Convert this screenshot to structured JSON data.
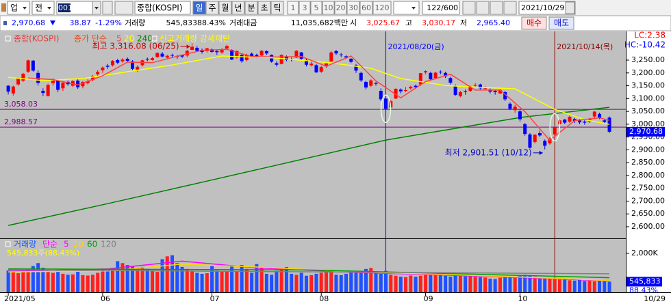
{
  "toolbar": {
    "market": "업",
    "scope": "전",
    "code": "001",
    "name": "종합(KOSPI)",
    "periods": [
      "일",
      "주",
      "월",
      "년",
      "분",
      "초",
      "틱"
    ],
    "intervals": [
      "1",
      "3",
      "5",
      "10",
      "20",
      "30",
      "60",
      "120"
    ],
    "count": "122/600",
    "date": "2021/10/29"
  },
  "quote": {
    "price": "2,970.68",
    "change": "38.87",
    "change_rate": "-1.29%",
    "volume_label": "거래량",
    "volume": "545,833",
    "volume_ratio": "88.43%",
    "amount_label": "거래대금",
    "amount": "11,035,682백만",
    "open_label": "시",
    "open": "3,025.67",
    "high_label": "고",
    "high": "3,030.17",
    "low_label": "저",
    "low": "2,965.40",
    "buy": "매수",
    "sell": "매도"
  },
  "chart_data": {
    "type": "candlestick",
    "legend_title": "종합(KOSPI)",
    "ma_label": "종가 단순",
    "pattern_label": "신고거래량 강세패턴",
    "up_color": "#ff0000",
    "down_color": "#0000ff",
    "open": [
      3150,
      3120,
      3155,
      3170,
      3205,
      3248,
      3200,
      3130,
      3110,
      3160,
      3170,
      3140,
      3165,
      3150,
      3170,
      3148,
      3160,
      3172,
      3195,
      3210,
      3228,
      3230,
      3250,
      3245,
      3255,
      3245,
      3212,
      3230,
      3255,
      3250,
      3262,
      3275,
      3260,
      3270,
      3265,
      3270,
      3268,
      3290,
      3298,
      3290,
      3285,
      3292,
      3285,
      3280,
      3295,
      3290,
      3260,
      3270,
      3250,
      3275,
      3270,
      3268,
      3285,
      3270,
      3238,
      3235,
      3265,
      3255,
      3260,
      3280,
      3250,
      3230,
      3230,
      3205,
      3225,
      3245,
      3285,
      3272,
      3265,
      3255,
      3230,
      3200,
      3165,
      3150,
      3160,
      3130,
      3100,
      3065,
      3100,
      3135,
      3130,
      3140,
      3150,
      3155,
      3202,
      3200,
      3180,
      3205,
      3200,
      3180,
      3150,
      3110,
      3130,
      3130,
      3150,
      3155,
      3138,
      3135,
      3130,
      3120,
      3125,
      3080,
      3055,
      3050,
      3000,
      2960,
      2930,
      2965,
      2935,
      2925,
      2960,
      3000,
      3018,
      3010,
      3020,
      3015,
      3010,
      3010,
      3030,
      3040,
      3015,
      3025.67
    ],
    "high": [
      3152,
      3150,
      3180,
      3200,
      3252,
      3250,
      3210,
      3140,
      3158,
      3180,
      3175,
      3165,
      3170,
      3172,
      3175,
      3168,
      3175,
      3192,
      3210,
      3225,
      3235,
      3250,
      3255,
      3258,
      3260,
      3250,
      3230,
      3252,
      3260,
      3262,
      3280,
      3282,
      3270,
      3275,
      3270,
      3272,
      3290,
      3316.08,
      3305,
      3295,
      3298,
      3296,
      3290,
      3296,
      3310,
      3292,
      3288,
      3275,
      3275,
      3280,
      3275,
      3290,
      3288,
      3272,
      3245,
      3272,
      3268,
      3260,
      3290,
      3282,
      3255,
      3245,
      3235,
      3228,
      3240,
      3285,
      3290,
      3278,
      3270,
      3258,
      3235,
      3205,
      3170,
      3175,
      3165,
      3140,
      3110,
      3095,
      3140,
      3140,
      3145,
      3150,
      3155,
      3200,
      3210,
      3205,
      3205,
      3210,
      3205,
      3185,
      3155,
      3130,
      3135,
      3150,
      3160,
      3158,
      3148,
      3140,
      3135,
      3138,
      3130,
      3085,
      3075,
      3060,
      3005,
      2965,
      2962,
      2975,
      2940,
      2950,
      2990,
      3018,
      3020,
      3035,
      3025,
      3020,
      3015,
      3025,
      3052,
      3045,
      3020,
      3030.17
    ],
    "low": [
      3116,
      3112,
      3150,
      3165,
      3200,
      3205,
      3150,
      3110,
      3108,
      3150,
      3125,
      3130,
      3150,
      3145,
      3138,
      3140,
      3155,
      3168,
      3185,
      3200,
      3215,
      3225,
      3235,
      3240,
      3240,
      3210,
      3205,
      3225,
      3245,
      3248,
      3258,
      3260,
      3255,
      3260,
      3255,
      3258,
      3262,
      3288,
      3282,
      3275,
      3280,
      3278,
      3270,
      3275,
      3290,
      3250,
      3255,
      3240,
      3245,
      3260,
      3258,
      3265,
      3270,
      3240,
      3225,
      3233,
      3245,
      3245,
      3258,
      3250,
      3225,
      3225,
      3200,
      3200,
      3220,
      3242,
      3270,
      3262,
      3255,
      3238,
      3200,
      3165,
      3135,
      3145,
      3150,
      3090,
      3045,
      3055,
      3098,
      3120,
      3125,
      3135,
      3138,
      3150,
      3195,
      3170,
      3175,
      3195,
      3180,
      3155,
      3110,
      3105,
      3115,
      3125,
      3145,
      3135,
      3132,
      3120,
      3115,
      3118,
      3090,
      3055,
      3045,
      3010,
      2955,
      2905,
      2925,
      2950,
      2901.51,
      2920,
      2955,
      2995,
      3000,
      3005,
      3005,
      3000,
      2998,
      3005,
      3025,
      3020,
      3000,
      2965.4
    ],
    "close": [
      3127,
      3147,
      3178,
      3197,
      3249,
      3209,
      3161,
      3122,
      3153,
      3173,
      3134,
      3162,
      3156,
      3168,
      3144,
      3165,
      3168,
      3188,
      3204,
      3221,
      3224,
      3247,
      3240,
      3252,
      3247,
      3216,
      3224,
      3249,
      3252,
      3258,
      3278,
      3264,
      3267,
      3268,
      3263,
      3264,
      3286,
      3302,
      3286,
      3282,
      3296,
      3282,
      3281,
      3293,
      3305,
      3252,
      3285,
      3246,
      3271,
      3266,
      3264,
      3286,
      3276,
      3244,
      3232,
      3270,
      3250,
      3254,
      3286,
      3255,
      3232,
      3236,
      3202,
      3223,
      3237,
      3280,
      3276,
      3270,
      3260,
      3243,
      3209,
      3171,
      3143,
      3171,
      3158,
      3097,
      3060,
      3090,
      3138,
      3128,
      3133,
      3146,
      3144,
      3199,
      3207,
      3175,
      3201,
      3203,
      3187,
      3162,
      3114,
      3125,
      3127,
      3148,
      3153,
      3140,
      3140,
      3127,
      3125,
      3133,
      3097,
      3060,
      3068,
      3019,
      2962,
      2908,
      2959,
      2956,
      2916,
      2944,
      2988,
      3015,
      3006,
      3029,
      3013,
      3007,
      3006,
      3020,
      3049,
      3025,
      3009,
      2970.68
    ],
    "xlim": [
      -0.7,
      124.3
    ],
    "xticks": [
      {
        "value": 0,
        "label": "2021/05"
      },
      {
        "value": 19,
        "label": "06"
      },
      {
        "value": 41,
        "label": "07"
      },
      {
        "value": 63,
        "label": "08"
      },
      {
        "value": 84,
        "label": "09"
      },
      {
        "value": 103,
        "label": "10"
      }
    ],
    "x_end_label": "10/29",
    "ylim": [
      2557.4,
      3361.9
    ],
    "yticks": [
      {
        "value": 2600,
        "label": "2,600.00"
      },
      {
        "value": 2650,
        "label": "2,650.00"
      },
      {
        "value": 2700,
        "label": "2,700.00"
      },
      {
        "value": 2750,
        "label": "2,750.00"
      },
      {
        "value": 2800,
        "label": "2,800.00"
      },
      {
        "value": 2850,
        "label": "2,850.00"
      },
      {
        "value": 2900,
        "label": "2,900.00"
      },
      {
        "value": 2950,
        "label": "2,950.00"
      },
      {
        "value": 3000,
        "label": "3,000.00"
      },
      {
        "value": 3050,
        "label": "3,050.00"
      },
      {
        "value": 3100,
        "label": "3,100.00"
      },
      {
        "value": 3150,
        "label": "3,150.00"
      },
      {
        "value": 3200,
        "label": "3,200.00"
      },
      {
        "value": 3250,
        "label": "3,250.00"
      }
    ],
    "lc_label": "LC:2.38",
    "hc_label": "HC:-10.42",
    "current_label": "2,970.68",
    "reference_lines": [
      {
        "value": 3058.03,
        "label": "3,058.03",
        "color": "#800080"
      },
      {
        "value": 2988.57,
        "label": "2,988.57",
        "color": "#800080"
      }
    ],
    "markers": [
      {
        "x": 76,
        "label": "2021/08/20(금)",
        "color": "#0000ff"
      },
      {
        "x": 110,
        "label": "2021/10/14(목)",
        "color": "#8b0000"
      }
    ],
    "annotations": [
      {
        "x": 37,
        "y": 3316.08,
        "text": "최고 3,316.08 (06/25)",
        "color": "#cc0000"
      },
      {
        "x": 108,
        "y": 2901.51,
        "text": "최저 2,901.51 (10/12)",
        "color": "#0000cc"
      }
    ],
    "moving_averages": [
      {
        "name": "5",
        "color": "#ff4040",
        "x": [
          4,
          9,
          14,
          19,
          24,
          29,
          34,
          39,
          44,
          49,
          54,
          59,
          64,
          69,
          74,
          79,
          84,
          89,
          94,
          99,
          104,
          109,
          114,
          119,
          121
        ],
        "values": [
          3180,
          3174,
          3153,
          3189,
          3242,
          3240,
          3265,
          3288,
          3292,
          3264,
          3262,
          3264,
          3226,
          3266,
          3169,
          3103,
          3166,
          3195,
          3133,
          3133,
          3049,
          2937,
          3014,
          3025,
          3015
        ]
      },
      {
        "name": "20",
        "color": "#ffff00",
        "x": [
          0,
          7,
          15,
          33,
          43,
          54,
          65,
          73,
          79,
          88,
          96,
          102,
          106,
          110,
          116,
          121
        ],
        "values": [
          3183,
          3170,
          3178,
          3231,
          3266,
          3258,
          3239,
          3218,
          3178,
          3151,
          3143,
          3138,
          3098,
          3058,
          3018,
          2999
        ]
      },
      {
        "name": "240",
        "color": "#008000",
        "x": [
          0,
          20,
          40,
          76,
          103,
          121
        ],
        "values": [
          2605,
          2690,
          2778,
          2938,
          3026,
          3066
        ]
      }
    ],
    "volume": {
      "label": "거래량",
      "ma_label": "단순",
      "current_text": "545,833주(88.43%)",
      "current_label": "545,833",
      "ratio_label": "88.43%",
      "ylim": [
        0,
        2667000
      ],
      "yticks": [
        {
          "value": 2000000,
          "label": "2,000K"
        }
      ],
      "values": [
        1120000,
        1080000,
        980000,
        1050000,
        1200000,
        1350000,
        1500000,
        1260000,
        1100000,
        1000000,
        1150000,
        950000,
        900000,
        920000,
        1060000,
        880000,
        860000,
        900000,
        1000000,
        1180000,
        1090000,
        1150000,
        1600000,
        1500000,
        1400000,
        1350000,
        1250000,
        1300000,
        1200000,
        1100000,
        1050000,
        1700000,
        1850000,
        1900000,
        1500000,
        1300000,
        1200000,
        1100000,
        1000000,
        950000,
        980000,
        1350000,
        1120000,
        1050000,
        1100000,
        1350000,
        1100000,
        1400000,
        1200000,
        1000000,
        1450000,
        1300000,
        950000,
        900000,
        1100000,
        1250000,
        1300000,
        950000,
        900000,
        1000000,
        850000,
        880000,
        950000,
        1000000,
        1050000,
        1150000,
        900000,
        880000,
        950000,
        1100000,
        1050000,
        1000000,
        1200000,
        1250000,
        1000000,
        950000,
        1100000,
        900000,
        850000,
        800000,
        780000,
        860000,
        800000,
        850000,
        920000,
        900000,
        880000,
        950000,
        850000,
        800000,
        900000,
        860000,
        820000,
        870000,
        800000,
        780000,
        760000,
        700000,
        680000,
        750000,
        800000,
        820000,
        780000,
        850000,
        900000,
        880000,
        800000,
        760000,
        720000,
        700000,
        680000,
        660000,
        650000,
        620000,
        600000,
        640000,
        580000,
        610000,
        560000,
        600000,
        580000,
        545833
      ],
      "moving_averages": [
        {
          "name": "5",
          "color": "#ff00ff",
          "x": [
            0,
            20,
            35,
            50,
            70,
            90,
            110,
            121
          ],
          "values": [
            1080000,
            1200000,
            1600000,
            1250000,
            1020000,
            870000,
            700000,
            580000
          ]
        },
        {
          "name": "20",
          "color": "#ffd700",
          "x": [
            0,
            20,
            35,
            50,
            70,
            90,
            110,
            121
          ],
          "values": [
            1050000,
            1100000,
            1450000,
            1300000,
            1050000,
            900000,
            720000,
            600000
          ]
        },
        {
          "name": "60",
          "color": "#00a000",
          "x": [
            0,
            60,
            121
          ],
          "values": [
            1200000,
            1150000,
            750000
          ]
        },
        {
          "name": "120",
          "color": "#808080",
          "x": [
            0,
            121
          ],
          "values": [
            1150000,
            950000
          ]
        }
      ]
    }
  }
}
